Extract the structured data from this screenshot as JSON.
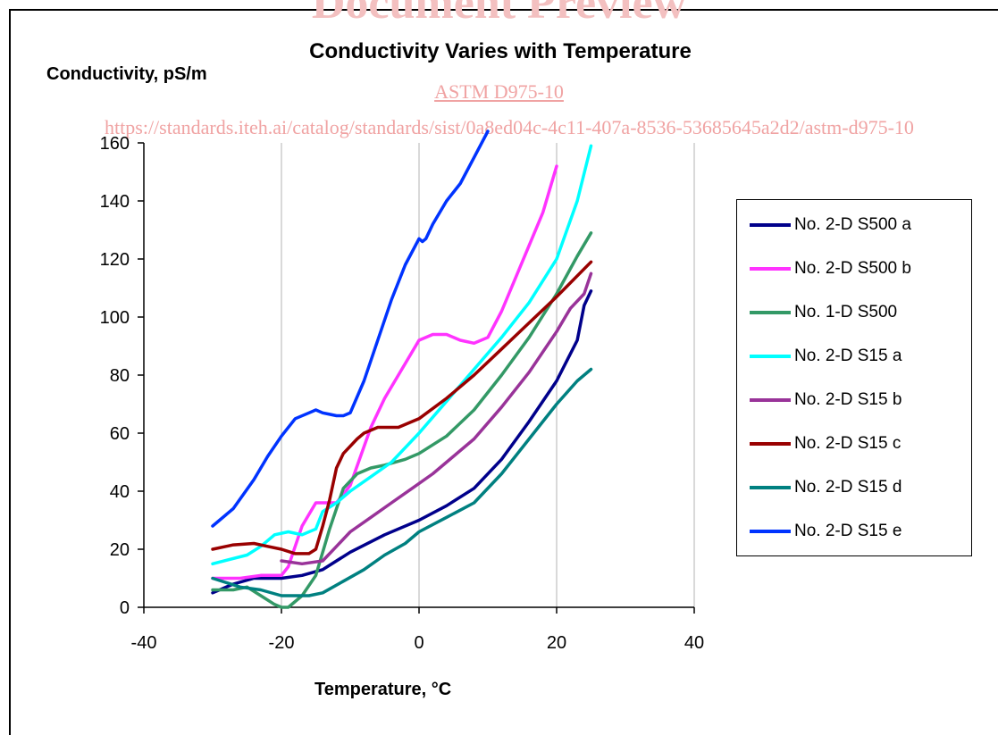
{
  "watermark": {
    "title": "Document Preview",
    "standard": "ASTM D975-10",
    "url": "https://standards.iteh.ai/catalog/standards/sist/0a8ed04c-4c11-407a-8536-53685645a2d2/astm-d975-10"
  },
  "chart_data": {
    "type": "line",
    "title": "Conductivity Varies with Temperature",
    "xlabel": "Temperature, °C",
    "ylabel": "Conductivity, pS/m",
    "xlim": [
      -40,
      40
    ],
    "ylim": [
      0,
      160
    ],
    "xticks": [
      -40,
      -20,
      0,
      20,
      40
    ],
    "yticks": [
      0,
      20,
      40,
      60,
      80,
      100,
      120,
      140,
      160
    ],
    "grid": "vertical",
    "legend_position": "right",
    "series": [
      {
        "name": "No. 2-D S500 a",
        "color": "#00008b",
        "x": [
          -30,
          -27,
          -24,
          -20,
          -17,
          -14,
          -10,
          -5,
          0,
          4,
          8,
          12,
          16,
          20,
          23,
          24,
          25
        ],
        "y": [
          5,
          8,
          10,
          10,
          11,
          13,
          19,
          25,
          30,
          35,
          41,
          51,
          64,
          78,
          92,
          104,
          109
        ]
      },
      {
        "name": "No. 2-D S500 b",
        "color": "#ff33ff",
        "x": [
          -30,
          -26,
          -23,
          -20,
          -19,
          -17,
          -15,
          -12,
          -10,
          -7,
          -5,
          -2,
          0,
          2,
          4,
          6,
          8,
          10,
          12,
          15,
          18,
          20
        ],
        "y": [
          10,
          10,
          11,
          11,
          14,
          28,
          36,
          36,
          42,
          62,
          72,
          84,
          92,
          94,
          94,
          92,
          91,
          93,
          102,
          119,
          136,
          152
        ]
      },
      {
        "name": "No. 1-D S500",
        "color": "#339966",
        "x": [
          -30,
          -27,
          -25,
          -23,
          -21,
          -20,
          -19,
          -17,
          -15,
          -13,
          -11,
          -9,
          -7,
          -5,
          -2,
          0,
          4,
          8,
          12,
          16,
          20,
          23,
          25
        ],
        "y": [
          6,
          6,
          7,
          4,
          1,
          0,
          0,
          4,
          11,
          27,
          41,
          46,
          48,
          49,
          51,
          53,
          59,
          68,
          80,
          93,
          108,
          121,
          129
        ]
      },
      {
        "name": "No. 2-D S15 a",
        "color": "#00ffff",
        "x": [
          -30,
          -25,
          -23,
          -21,
          -19,
          -17,
          -15,
          -14,
          -12,
          -10,
          -7,
          -4,
          0,
          4,
          8,
          12,
          16,
          20,
          23,
          25
        ],
        "y": [
          15,
          18,
          21,
          25,
          26,
          25,
          27,
          33,
          36,
          40,
          45,
          50,
          60,
          71,
          82,
          93,
          105,
          120,
          140,
          159
        ]
      },
      {
        "name": "No. 2-D S15 b",
        "color": "#993399",
        "x": [
          -20,
          -17,
          -14,
          -12,
          -10,
          -7,
          -4,
          -1,
          2,
          5,
          8,
          12,
          16,
          20,
          22,
          24,
          25
        ],
        "y": [
          16,
          15,
          16,
          21,
          26,
          31,
          36,
          41,
          46,
          52,
          58,
          69,
          81,
          95,
          103,
          108,
          115
        ]
      },
      {
        "name": "No. 2-D S15 c",
        "color": "#990000",
        "x": [
          -30,
          -27,
          -24,
          -22,
          -20,
          -18,
          -16,
          -15,
          -14,
          -13,
          -12,
          -11,
          -9,
          -8,
          -6,
          -3,
          0,
          4,
          8,
          12,
          16,
          20,
          25
        ],
        "y": [
          20,
          21.5,
          22,
          21,
          20,
          18.5,
          18.5,
          20,
          28,
          37,
          48,
          53,
          58,
          60,
          62,
          62,
          65,
          72,
          80,
          89,
          98,
          107,
          119
        ]
      },
      {
        "name": "No. 2-D S15 d",
        "color": "#008080",
        "x": [
          -30,
          -26,
          -23,
          -20,
          -18,
          -16,
          -14,
          -11,
          -8,
          -5,
          -2,
          0,
          4,
          8,
          12,
          16,
          20,
          23,
          25
        ],
        "y": [
          10,
          7,
          6,
          4,
          4,
          4,
          5,
          9,
          13,
          18,
          22,
          26,
          31,
          36,
          46,
          58,
          70,
          78,
          82
        ]
      },
      {
        "name": "No. 2-D S15 e",
        "color": "#0033ff",
        "x": [
          -30,
          -27,
          -24,
          -22,
          -20,
          -18,
          -16,
          -15,
          -14,
          -13,
          -12,
          -11,
          -10,
          -8,
          -6,
          -4,
          -2,
          0,
          0.5,
          1,
          2,
          4,
          6,
          8,
          10
        ],
        "y": [
          28,
          34,
          44,
          52,
          59,
          65,
          67,
          68,
          67,
          66.5,
          66,
          66,
          67,
          78,
          92,
          106,
          118,
          127,
          126,
          127,
          132,
          140,
          146,
          155,
          164
        ]
      }
    ]
  }
}
